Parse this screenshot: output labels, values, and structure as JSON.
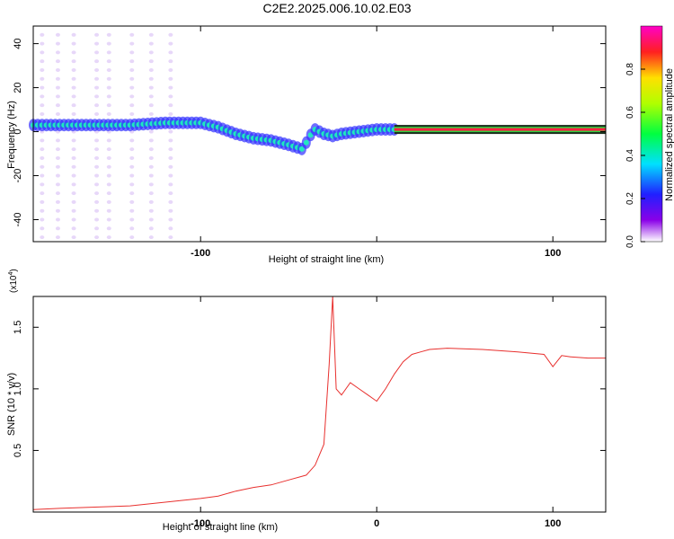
{
  "title": "C2E2.2025.006.10.02.E03",
  "chart_data": [
    {
      "type": "heatmap",
      "title": "C2E2.2025.006.10.02.E03",
      "xlabel": "Height of straight line (km)",
      "ylabel": "Frequency (Hz)",
      "xlim": [
        -195,
        130
      ],
      "ylim": [
        -50,
        48
      ],
      "x_ticks": [
        -100,
        0,
        100
      ],
      "x_tick_labels": [
        "-100",
        "",
        "100"
      ],
      "y_ticks": [
        -40,
        -20,
        0,
        20,
        40
      ],
      "y_tick_labels": [
        "-40",
        "-20",
        "0",
        "20",
        "40"
      ],
      "colorbar": {
        "label": "Normalized spectral amplitude",
        "range": [
          0,
          1
        ],
        "ticks": [
          0.0,
          0.2,
          0.4,
          0.6,
          0.8
        ],
        "tick_labels": [
          "0.0",
          "0.2",
          "0.4",
          "0.6",
          "0.8"
        ]
      },
      "ridge": {
        "x": [
          -195,
          -180,
          -160,
          -140,
          -120,
          -100,
          -90,
          -80,
          -70,
          -60,
          -50,
          -42,
          -38,
          -35,
          -30,
          -25,
          -20,
          -10,
          0,
          10,
          130
        ],
        "y": [
          3,
          3,
          3,
          3,
          4,
          4,
          2,
          -1,
          -3,
          -4,
          -6,
          -8,
          -2,
          1,
          -1,
          -2,
          -1,
          0,
          1,
          1,
          1
        ]
      }
    },
    {
      "type": "line",
      "xlabel": "Height of straight line (km)",
      "ylabel": "SNR (10 * v/v)",
      "y_scale_label": "(x10",
      "y_scale_exponent": "4",
      "xlim": [
        -195,
        130
      ],
      "ylim": [
        0,
        1.75
      ],
      "x_ticks": [
        -100,
        0,
        100
      ],
      "x_tick_labels": [
        "-100",
        "0",
        "100"
      ],
      "y_ticks": [
        0.5,
        1.0,
        1.5
      ],
      "y_tick_labels": [
        "0.5",
        "1.0",
        "1.5"
      ],
      "series": [
        {
          "color": "#e8302e",
          "x": [
            -195,
            -180,
            -160,
            -140,
            -120,
            -100,
            -90,
            -80,
            -70,
            -60,
            -50,
            -40,
            -35,
            -30,
            -27,
            -25,
            -23,
            -20,
            -15,
            -10,
            -5,
            0,
            5,
            10,
            15,
            20,
            25,
            30,
            40,
            60,
            80,
            95,
            100,
            105,
            110,
            120,
            130
          ],
          "y": [
            0.02,
            0.03,
            0.04,
            0.05,
            0.08,
            0.11,
            0.13,
            0.17,
            0.2,
            0.22,
            0.26,
            0.3,
            0.38,
            0.55,
            1.2,
            1.75,
            1.0,
            0.95,
            1.05,
            1.0,
            0.95,
            0.9,
            1.0,
            1.12,
            1.22,
            1.28,
            1.3,
            1.32,
            1.33,
            1.32,
            1.3,
            1.28,
            1.18,
            1.27,
            1.26,
            1.25,
            1.25
          ]
        }
      ]
    }
  ]
}
